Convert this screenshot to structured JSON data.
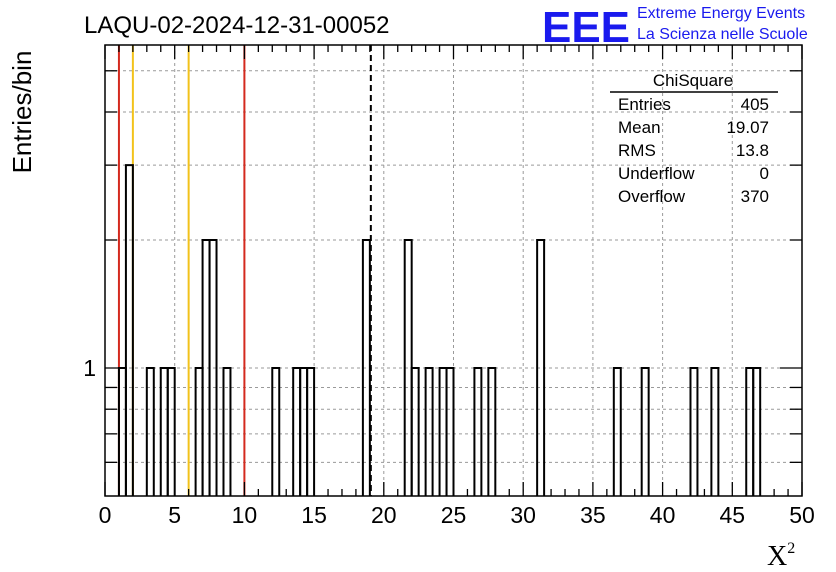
{
  "header": {
    "run_title": "LAQU-02-2024-12-31-00052",
    "logo_text": "EEE",
    "project_line1": "Extreme Energy Events",
    "project_line2": "La Scienza nelle Scuole"
  },
  "stats": {
    "title": "ChiSquare",
    "rows": [
      {
        "label": "Entries",
        "value": "405"
      },
      {
        "label": "Mean",
        "value": "19.07"
      },
      {
        "label": "RMS",
        "value": "13.8"
      },
      {
        "label": "Underflow",
        "value": "0"
      },
      {
        "label": "Overflow",
        "value": "370"
      }
    ]
  },
  "chart_data": {
    "type": "histogram",
    "xlabel": "X",
    "xlabel_superscript": "2",
    "ylabel": "Entries/bin",
    "xlim": [
      0,
      50
    ],
    "ylog": true,
    "ylim": [
      0.5,
      6
    ],
    "grid": true,
    "bin_width": 0.5,
    "x_ticks": [
      0,
      5,
      10,
      15,
      20,
      25,
      30,
      35,
      40,
      45,
      50
    ],
    "y_tick_labels": [
      {
        "value": 1,
        "label": "1"
      }
    ],
    "bins": [
      {
        "x": 1.0,
        "count": 1
      },
      {
        "x": 1.5,
        "count": 3
      },
      {
        "x": 3.0,
        "count": 1
      },
      {
        "x": 4.0,
        "count": 1
      },
      {
        "x": 4.5,
        "count": 1
      },
      {
        "x": 6.5,
        "count": 1
      },
      {
        "x": 7.0,
        "count": 2
      },
      {
        "x": 7.5,
        "count": 2
      },
      {
        "x": 8.5,
        "count": 1
      },
      {
        "x": 12.0,
        "count": 1
      },
      {
        "x": 13.5,
        "count": 1
      },
      {
        "x": 14.0,
        "count": 1
      },
      {
        "x": 14.5,
        "count": 1
      },
      {
        "x": 18.5,
        "count": 2
      },
      {
        "x": 21.5,
        "count": 2
      },
      {
        "x": 22.0,
        "count": 1
      },
      {
        "x": 23.0,
        "count": 1
      },
      {
        "x": 24.0,
        "count": 1
      },
      {
        "x": 24.5,
        "count": 1
      },
      {
        "x": 26.5,
        "count": 1
      },
      {
        "x": 27.5,
        "count": 1
      },
      {
        "x": 31.0,
        "count": 2
      },
      {
        "x": 36.5,
        "count": 1
      },
      {
        "x": 38.5,
        "count": 1
      },
      {
        "x": 42.0,
        "count": 1
      },
      {
        "x": 43.5,
        "count": 1
      },
      {
        "x": 46.0,
        "count": 1
      },
      {
        "x": 46.5,
        "count": 1
      }
    ],
    "reference_lines": [
      {
        "x": 1.0,
        "color": "#d42a1e",
        "style": "solid"
      },
      {
        "x": 2.0,
        "color": "#f2c21b",
        "style": "solid"
      },
      {
        "x": 6.0,
        "color": "#f2c21b",
        "style": "solid"
      },
      {
        "x": 10.0,
        "color": "#d42a1e",
        "style": "solid"
      },
      {
        "x": 19.07,
        "color": "#000000",
        "style": "dashed"
      }
    ],
    "colors": {
      "logo": "#1a1aee",
      "histogram": "#000000",
      "grid": "#9a9a9a"
    }
  }
}
